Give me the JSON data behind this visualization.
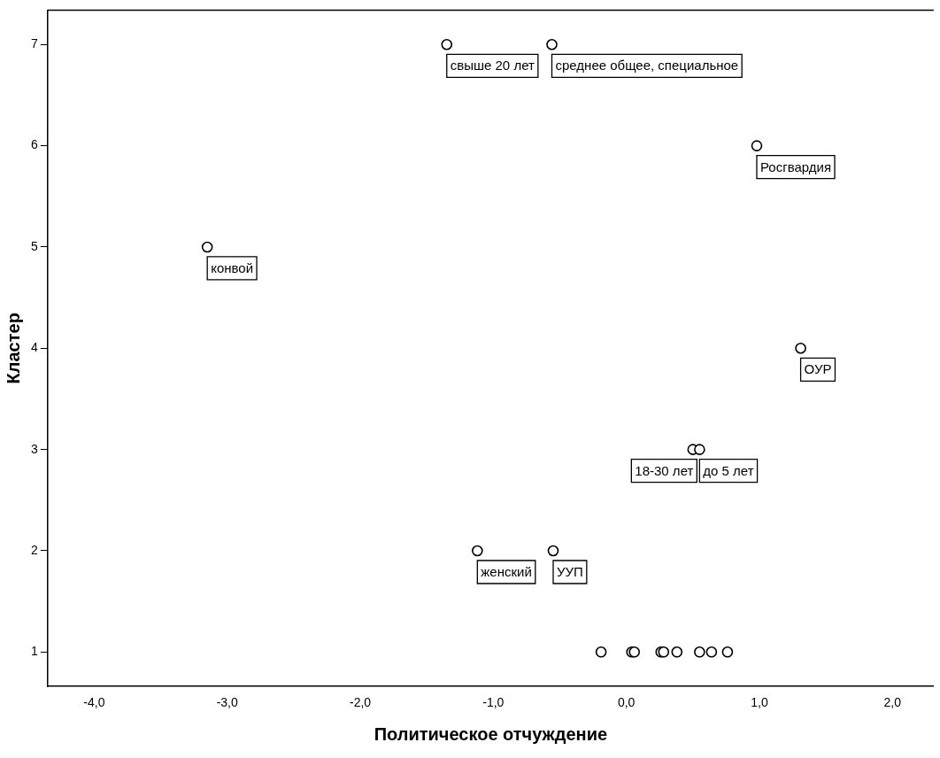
{
  "chart_data": {
    "type": "scatter",
    "xlabel": "Политическое отчуждение",
    "ylabel": "Кластер",
    "x": [
      -1.35,
      -0.56,
      0.98,
      -3.15,
      1.31,
      0.5,
      0.55,
      -1.12,
      -0.55,
      -0.19,
      0.04,
      0.06,
      0.26,
      0.28,
      0.38,
      0.55,
      0.64,
      0.76
    ],
    "series": [
      {
        "color": "#000000",
        "values": [
          7,
          7,
          6,
          5,
          4,
          3,
          3,
          2,
          2,
          1,
          1,
          1,
          1,
          1,
          1,
          1,
          1,
          1
        ]
      }
    ],
    "xlim": [
      -4.35,
      2.31
    ],
    "ylim": [
      0.66,
      7.34
    ],
    "xticks": [
      {
        "value": -4,
        "label": "-4,0"
      },
      {
        "value": -3,
        "label": "-3,0"
      },
      {
        "value": -2,
        "label": "-2,0"
      },
      {
        "value": -1,
        "label": "-1,0"
      },
      {
        "value": 0,
        "label": "0,0"
      },
      {
        "value": 1,
        "label": "1,0"
      },
      {
        "value": 2,
        "label": "2,0"
      }
    ],
    "yticks": [
      1,
      2,
      3,
      4,
      5,
      6,
      7
    ],
    "annotations": [
      {
        "text": "свыше 20 лет",
        "x": -1.35,
        "y": 7
      },
      {
        "text": "среднее общее, специальное",
        "x": -0.56,
        "y": 7
      },
      {
        "text": "Росгвардия",
        "x": 0.98,
        "y": 6
      },
      {
        "text": "конвой",
        "x": -3.15,
        "y": 5
      },
      {
        "text": "ОУР",
        "x": 1.31,
        "y": 4
      },
      {
        "text": "18-30 лет",
        "x": 0.5,
        "y": 3
      },
      {
        "text": "до 5 лет",
        "x": 0.55,
        "y": 3
      },
      {
        "text": "женский",
        "x": -1.12,
        "y": 2
      },
      {
        "text": "УУП",
        "x": -0.55,
        "y": 2
      }
    ],
    "grid": false,
    "legend": false,
    "marker": "circle"
  }
}
